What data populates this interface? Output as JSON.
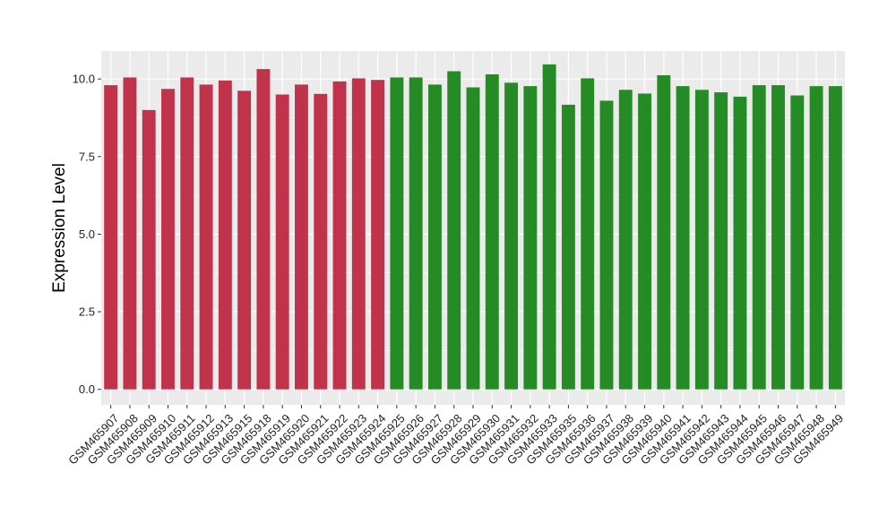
{
  "chart_data": {
    "type": "bar",
    "title": "",
    "xlabel": "",
    "ylabel": "Expression Level",
    "ylim": [
      -0.5,
      10.9
    ],
    "yticks": [
      0.0,
      2.5,
      5.0,
      7.5,
      10.0
    ],
    "ytick_labels": [
      "0.0",
      "2.5",
      "5.0",
      "7.5",
      "10.0"
    ],
    "grid": true,
    "legend": "none",
    "colors": {
      "panel_background": "#ebebeb",
      "grid": "#ffffff",
      "group_1": "#c0334b",
      "group_2": "#258b25",
      "text": "#000000"
    },
    "categories": [
      "GSM465907",
      "GSM465908",
      "GSM465909",
      "GSM465910",
      "GSM465911",
      "GSM465912",
      "GSM465913",
      "GSM465915",
      "GSM465918",
      "GSM465919",
      "GSM465920",
      "GSM465921",
      "GSM465922",
      "GSM465923",
      "GSM465924",
      "GSM465925",
      "GSM465926",
      "GSM465927",
      "GSM465928",
      "GSM465929",
      "GSM465930",
      "GSM465931",
      "GSM465932",
      "GSM465933",
      "GSM465935",
      "GSM465936",
      "GSM465937",
      "GSM465938",
      "GSM465939",
      "GSM465940",
      "GSM465941",
      "GSM465942",
      "GSM465943",
      "GSM465944",
      "GSM465945",
      "GSM465946",
      "GSM465947",
      "GSM465948",
      "GSM465949"
    ],
    "values": [
      9.8,
      10.05,
      9.0,
      9.68,
      10.05,
      9.82,
      9.95,
      9.62,
      10.32,
      9.5,
      9.82,
      9.52,
      9.92,
      10.02,
      9.97,
      10.05,
      10.05,
      9.82,
      10.25,
      9.73,
      10.15,
      9.88,
      9.77,
      10.47,
      9.17,
      10.02,
      9.3,
      9.65,
      9.53,
      10.12,
      9.77,
      9.65,
      9.57,
      9.43,
      9.8,
      9.8,
      9.47,
      9.77,
      9.77
    ],
    "bar_groups": [
      "group_1",
      "group_1",
      "group_1",
      "group_1",
      "group_1",
      "group_1",
      "group_1",
      "group_1",
      "group_1",
      "group_1",
      "group_1",
      "group_1",
      "group_1",
      "group_1",
      "group_1",
      "group_2",
      "group_2",
      "group_2",
      "group_2",
      "group_2",
      "group_2",
      "group_2",
      "group_2",
      "group_2",
      "group_2",
      "group_2",
      "group_2",
      "group_2",
      "group_2",
      "group_2",
      "group_2",
      "group_2",
      "group_2",
      "group_2",
      "group_2",
      "group_2",
      "group_2",
      "group_2",
      "group_2"
    ]
  }
}
